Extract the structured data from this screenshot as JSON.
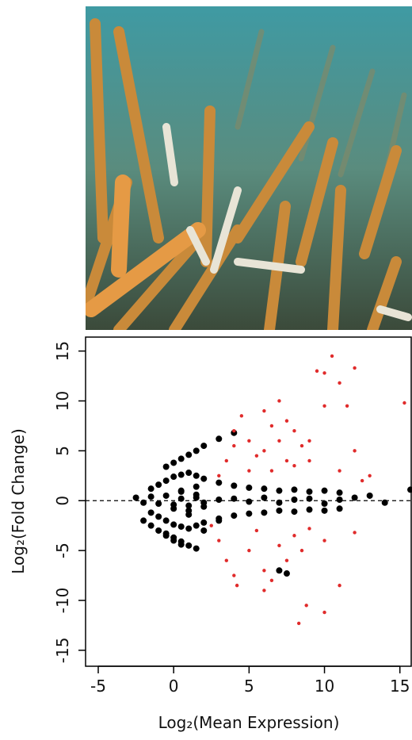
{
  "chart_data": {
    "type": "scatter",
    "x_label": "Log₂(Mean Expression)",
    "y_label": "Log₂(Fold Change)",
    "xlim": [
      -5.84,
      15.75
    ],
    "ylim": [
      -16.6,
      16.4
    ],
    "xticks": [
      -5,
      0,
      5,
      10,
      15
    ],
    "yticks": [
      -15,
      -10,
      -5,
      0,
      5,
      10,
      15
    ],
    "hline": 0,
    "series": [
      {
        "color": "#000000",
        "x": [
          -2.5,
          -2,
          -1.5,
          -1,
          -0.5,
          0,
          0.5,
          1,
          1.5,
          2,
          3,
          4,
          5,
          6,
          7,
          8,
          9,
          10,
          11,
          12,
          13,
          14,
          -1.5,
          -1,
          -0.5,
          0,
          0.5,
          1,
          1.5,
          2,
          3,
          4,
          5,
          6,
          7,
          8,
          9,
          10,
          11,
          -1.5,
          -1,
          -0.5,
          0,
          0.5,
          1,
          1.5,
          2,
          3,
          4,
          5,
          6,
          7,
          8,
          9,
          10,
          11,
          -0.5,
          0,
          0.5,
          1,
          1.5,
          2,
          3,
          4,
          -0.5,
          0,
          0.5,
          1,
          1.5,
          2,
          3,
          0.5,
          1,
          1.5,
          2,
          0,
          0.5,
          1,
          1.5,
          -2,
          -1.5,
          -1,
          -0.5,
          0,
          0.5,
          15.7,
          7,
          7.5
        ],
        "values": [
          0.3,
          -0.2,
          0.4,
          -0.3,
          0.5,
          -0.4,
          0.2,
          -0.5,
          0.3,
          -0.2,
          0.1,
          0.2,
          -0.1,
          0.3,
          -0.2,
          0.1,
          0.2,
          -0.3,
          0.1,
          0.3,
          0.5,
          -0.2,
          1.2,
          1.6,
          2,
          2.4,
          2.6,
          2.8,
          2.5,
          2.2,
          1.8,
          1.5,
          1.3,
          1.2,
          1,
          1.1,
          0.9,
          1,
          0.8,
          -1.2,
          -1.6,
          -2,
          -2.4,
          -2.6,
          -2.8,
          -2.5,
          -2.2,
          -1.8,
          -1.5,
          -1.3,
          -1.2,
          -1,
          -1.1,
          -0.9,
          -1,
          -0.8,
          3.4,
          3.8,
          4.2,
          4.6,
          5,
          5.5,
          6.2,
          6.8,
          -3.3,
          -3.7,
          -4.1,
          -4.5,
          -4.8,
          -3,
          -2,
          1,
          -1,
          0.6,
          -0.6,
          -0.8,
          0.9,
          -1.4,
          1.4,
          -2,
          -2.5,
          -3,
          -3.5,
          -4,
          -4.4,
          1.1,
          -7,
          -7.3
        ]
      },
      {
        "color": "#e02b2b",
        "x": [
          3,
          3.5,
          4,
          4,
          4.5,
          5,
          5,
          5.5,
          6,
          6,
          6.5,
          6.5,
          7,
          7,
          7.5,
          7.5,
          8,
          8,
          8.5,
          9,
          9,
          9.5,
          10,
          10.5,
          11,
          12,
          11.5,
          10,
          12,
          11,
          15.3,
          13,
          12.5,
          2.5,
          3,
          3.5,
          4,
          4.2,
          5,
          5.5,
          6,
          6.5,
          7,
          7.5,
          8,
          8.5,
          9,
          10,
          11,
          10,
          8.3,
          8.8,
          12,
          6
        ],
        "values": [
          2.5,
          4,
          5.5,
          7,
          8.5,
          6,
          3,
          4.5,
          9,
          5,
          7.5,
          3,
          10,
          6,
          4,
          8,
          7,
          3.5,
          5.5,
          6,
          4,
          13,
          12.8,
          14.5,
          11.8,
          13.3,
          9.5,
          9.5,
          5,
          3,
          9.8,
          2.5,
          2,
          -2.5,
          -4,
          -6,
          -7.5,
          -8.5,
          -5,
          -3,
          -7,
          -8,
          -4.5,
          -6,
          -3.5,
          -5,
          -2.8,
          -4,
          -8.5,
          -11.2,
          -12.3,
          -10.5,
          -3.2,
          -9
        ]
      }
    ]
  }
}
